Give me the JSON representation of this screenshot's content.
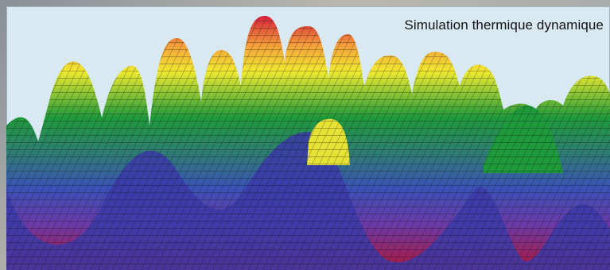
{
  "caption": "Simulation thermique dynamique",
  "colors": {
    "background": "#d9e9f2",
    "low": "#b0183c",
    "mid_low": "#3a52b8",
    "mid": "#1f9a3a",
    "high": "#f0ea30",
    "peak": "#d8203c",
    "mesh": "#111111"
  }
}
